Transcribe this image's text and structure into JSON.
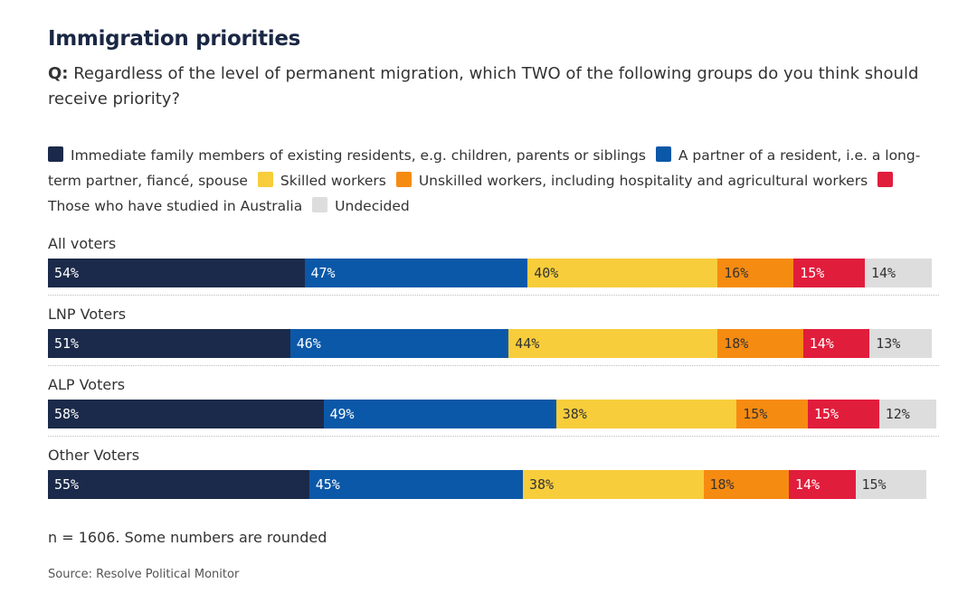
{
  "header": {
    "title": "Immigration priorities",
    "question_label": "Q:",
    "question_text": "Regardless of the level of permanent migration, which TWO of the following groups do you think should receive priority?"
  },
  "footer": {
    "note": "n = 1606. Some numbers are rounded",
    "source": "Source: Resolve Political Monitor"
  },
  "chart_data": {
    "type": "bar",
    "orientation": "horizontal",
    "stacked": true,
    "title": "Immigration priorities",
    "categories": [
      "All voters",
      "LNP Voters",
      "ALP Voters",
      "Other Voters"
    ],
    "series": [
      {
        "name": "Immediate family members of existing residents, e.g. children, parents or siblings",
        "color": "#1b2a4a",
        "label_color": "#ffffff",
        "values": [
          54,
          51,
          58,
          55
        ]
      },
      {
        "name": "A partner of a resident, i.e. a long-term partner, fiancé, spouse",
        "color": "#0b58a8",
        "label_color": "#ffffff",
        "values": [
          47,
          46,
          49,
          45
        ]
      },
      {
        "name": "Skilled workers",
        "color": "#f7cd3b",
        "label_color": "#333333",
        "values": [
          40,
          44,
          38,
          38
        ]
      },
      {
        "name": "Unskilled workers, including hospitality and agricultural workers",
        "color": "#f68b12",
        "label_color": "#333333",
        "values": [
          16,
          18,
          15,
          18
        ]
      },
      {
        "name": "Those who have studied in Australia",
        "color": "#e11d3c",
        "label_color": "#ffffff",
        "values": [
          15,
          14,
          15,
          14
        ]
      },
      {
        "name": "Undecided",
        "color": "#dddddd",
        "label_color": "#333333",
        "values": [
          14,
          13,
          12,
          15
        ]
      }
    ],
    "value_suffix": "%",
    "legend_position": "top",
    "grid": false
  }
}
